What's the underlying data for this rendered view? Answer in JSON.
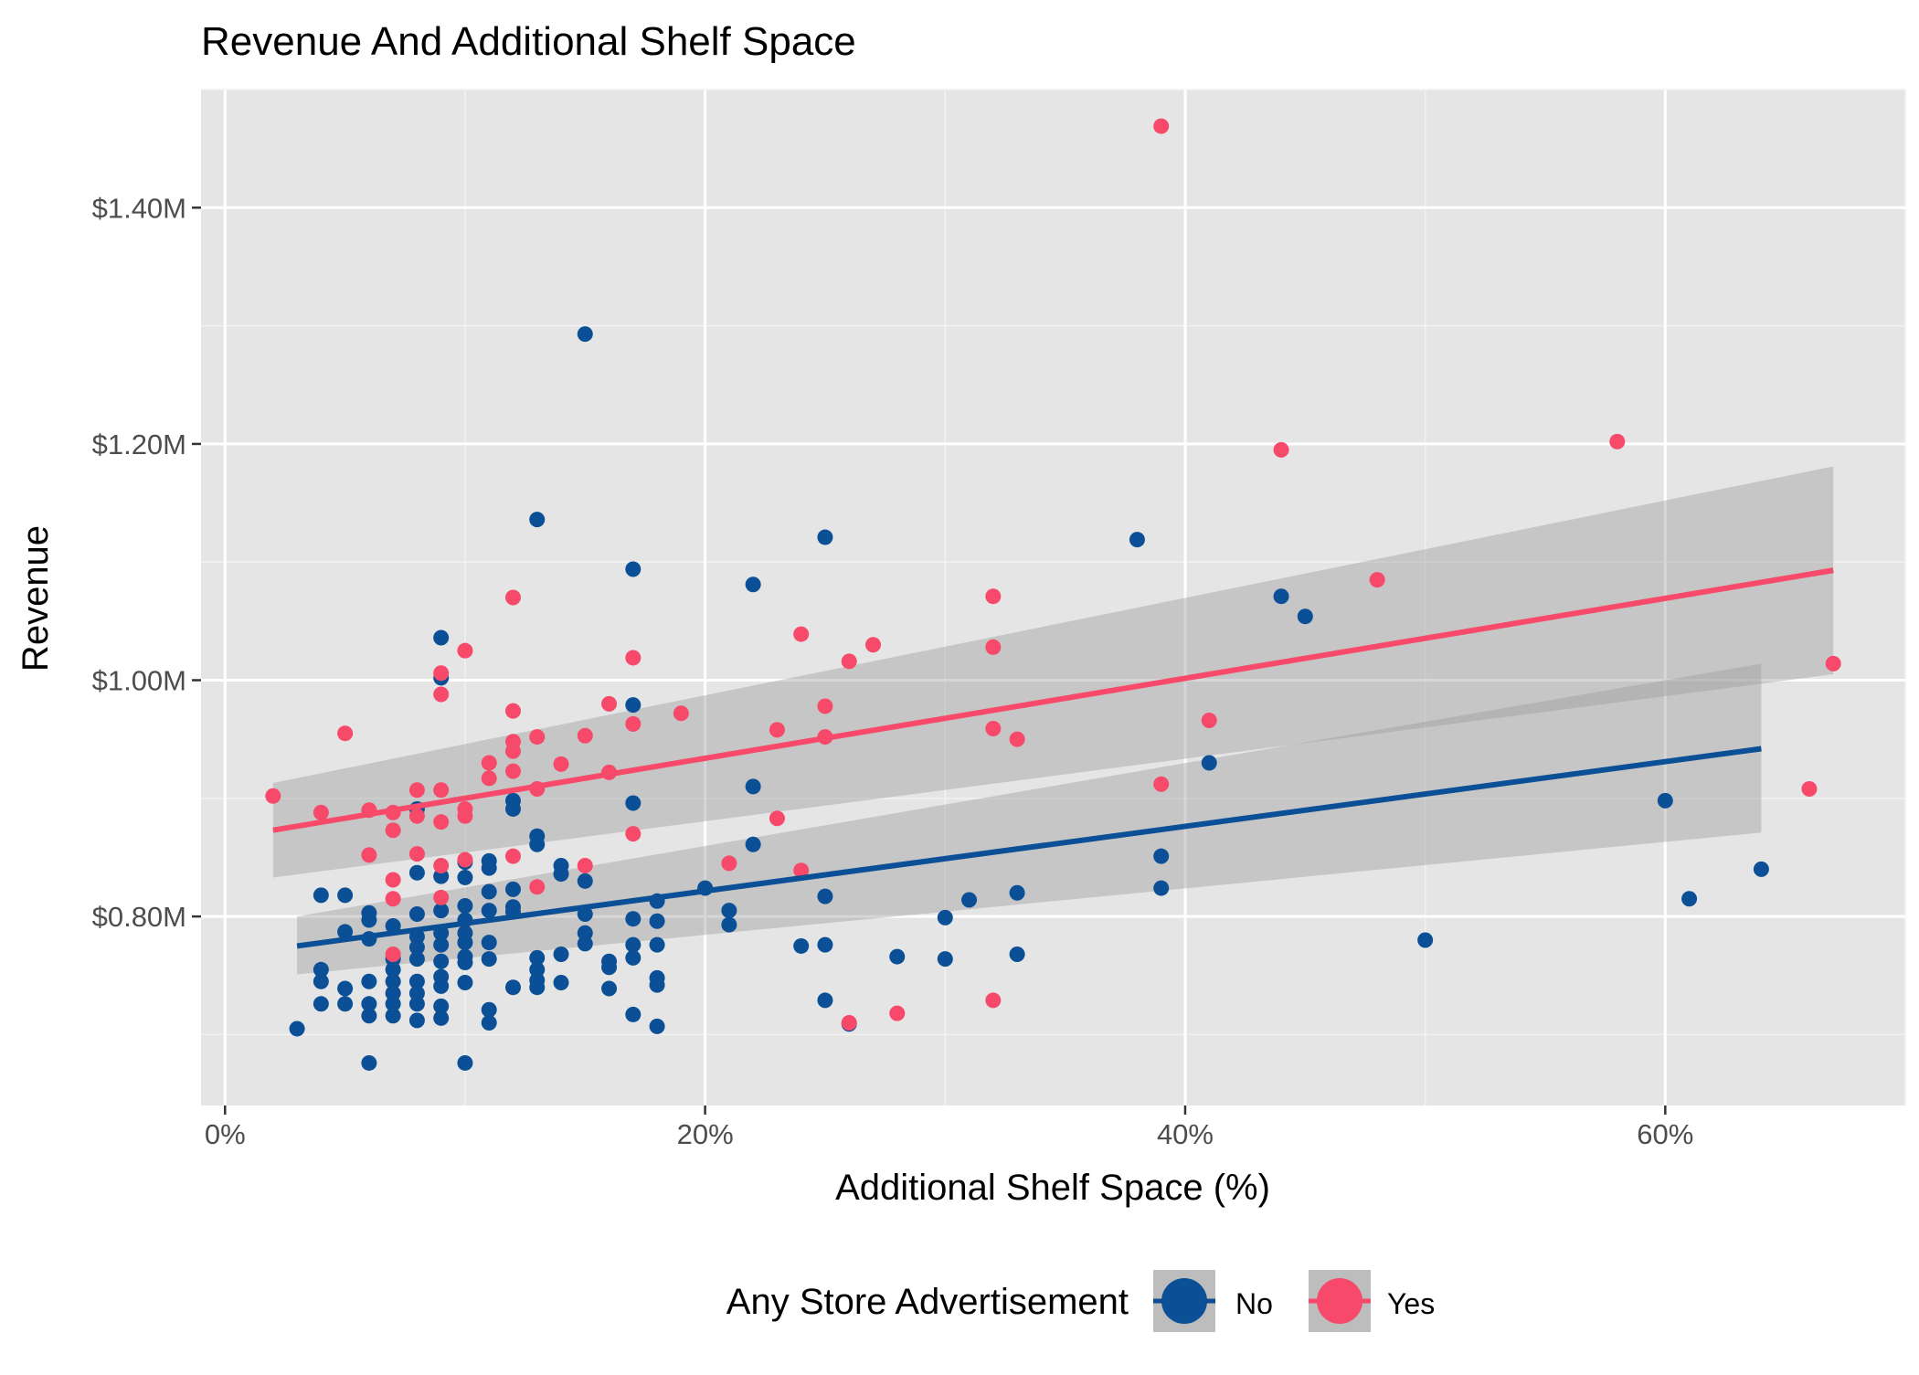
{
  "chart_data": {
    "type": "scatter",
    "title": "Revenue And Additional Shelf Space",
    "xlabel": "Additional Shelf Space (%)",
    "ylabel": "Revenue",
    "xlim": [
      -1,
      70
    ],
    "ylim": [
      0.64,
      1.5
    ],
    "x_ticks": [
      0,
      20,
      40,
      60
    ],
    "x_tick_labels": [
      "0%",
      "20%",
      "40%",
      "60%"
    ],
    "y_ticks": [
      0.8,
      1.0,
      1.2,
      1.4
    ],
    "y_tick_labels": [
      "$0.80M",
      "$1.00M",
      "$1.20M",
      "$1.40M"
    ],
    "grid": true,
    "legend": {
      "title": "Any Store Advertisement",
      "position": "bottom",
      "entries": [
        "No",
        "Yes"
      ]
    },
    "series": [
      {
        "name": "No",
        "color": "#0b4f96",
        "points": [
          [
            3,
            0.705
          ],
          [
            4,
            0.726
          ],
          [
            4,
            0.745
          ],
          [
            4,
            0.755
          ],
          [
            4,
            0.818
          ],
          [
            5,
            0.726
          ],
          [
            5,
            0.739
          ],
          [
            5,
            0.787
          ],
          [
            5,
            0.818
          ],
          [
            6,
            0.676
          ],
          [
            6,
            0.716
          ],
          [
            6,
            0.726
          ],
          [
            6,
            0.745
          ],
          [
            6,
            0.781
          ],
          [
            6,
            0.797
          ],
          [
            6,
            0.803
          ],
          [
            7,
            0.716
          ],
          [
            7,
            0.726
          ],
          [
            7,
            0.735
          ],
          [
            7,
            0.745
          ],
          [
            7,
            0.755
          ],
          [
            7,
            0.764
          ],
          [
            7,
            0.792
          ],
          [
            8,
            0.712
          ],
          [
            8,
            0.726
          ],
          [
            8,
            0.735
          ],
          [
            8,
            0.745
          ],
          [
            8,
            0.764
          ],
          [
            8,
            0.774
          ],
          [
            8,
            0.783
          ],
          [
            8,
            0.802
          ],
          [
            8,
            0.837
          ],
          [
            8,
            0.891
          ],
          [
            9,
            0.714
          ],
          [
            9,
            0.724
          ],
          [
            9,
            0.741
          ],
          [
            9,
            0.749
          ],
          [
            9,
            0.762
          ],
          [
            9,
            0.776
          ],
          [
            9,
            0.786
          ],
          [
            9,
            0.805
          ],
          [
            9,
            0.834
          ],
          [
            9,
            1.002
          ],
          [
            9,
            1.036
          ],
          [
            10,
            0.676
          ],
          [
            10,
            0.744
          ],
          [
            10,
            0.761
          ],
          [
            10,
            0.766
          ],
          [
            10,
            0.778
          ],
          [
            10,
            0.786
          ],
          [
            10,
            0.797
          ],
          [
            10,
            0.809
          ],
          [
            10,
            0.833
          ],
          [
            10,
            0.846
          ],
          [
            11,
            0.71
          ],
          [
            11,
            0.721
          ],
          [
            11,
            0.764
          ],
          [
            11,
            0.778
          ],
          [
            11,
            0.805
          ],
          [
            11,
            0.821
          ],
          [
            11,
            0.841
          ],
          [
            11,
            0.847
          ],
          [
            12,
            0.74
          ],
          [
            12,
            0.804
          ],
          [
            12,
            0.808
          ],
          [
            12,
            0.823
          ],
          [
            12,
            0.891
          ],
          [
            12,
            0.898
          ],
          [
            13,
            0.74
          ],
          [
            13,
            0.746
          ],
          [
            13,
            0.755
          ],
          [
            13,
            0.765
          ],
          [
            13,
            0.861
          ],
          [
            13,
            0.868
          ],
          [
            13,
            1.136
          ],
          [
            14,
            0.744
          ],
          [
            14,
            0.768
          ],
          [
            14,
            0.836
          ],
          [
            14,
            0.843
          ],
          [
            15,
            0.777
          ],
          [
            15,
            0.786
          ],
          [
            15,
            0.802
          ],
          [
            15,
            0.83
          ],
          [
            15,
            1.293
          ],
          [
            16,
            0.739
          ],
          [
            16,
            0.757
          ],
          [
            16,
            0.762
          ],
          [
            17,
            0.717
          ],
          [
            17,
            0.765
          ],
          [
            17,
            0.776
          ],
          [
            17,
            0.798
          ],
          [
            17,
            0.896
          ],
          [
            17,
            0.979
          ],
          [
            17,
            1.094
          ],
          [
            18,
            0.707
          ],
          [
            18,
            0.742
          ],
          [
            18,
            0.748
          ],
          [
            18,
            0.776
          ],
          [
            18,
            0.796
          ],
          [
            18,
            0.813
          ],
          [
            20,
            0.824
          ],
          [
            21,
            0.793
          ],
          [
            21,
            0.805
          ],
          [
            22,
            0.861
          ],
          [
            22,
            0.91
          ],
          [
            22,
            1.081
          ],
          [
            24,
            0.775
          ],
          [
            25,
            0.729
          ],
          [
            25,
            0.776
          ],
          [
            25,
            0.817
          ],
          [
            25,
            1.121
          ],
          [
            26,
            0.709
          ],
          [
            28,
            0.766
          ],
          [
            30,
            0.764
          ],
          [
            30,
            0.799
          ],
          [
            31,
            0.814
          ],
          [
            33,
            0.768
          ],
          [
            33,
            0.82
          ],
          [
            38,
            1.119
          ],
          [
            39,
            0.824
          ],
          [
            39,
            0.851
          ],
          [
            41,
            0.93
          ],
          [
            44,
            1.071
          ],
          [
            45,
            1.054
          ],
          [
            50,
            0.78
          ],
          [
            60,
            0.898
          ],
          [
            61,
            0.815
          ],
          [
            64,
            0.84
          ]
        ],
        "trend": {
          "x": [
            3,
            64
          ],
          "y": [
            0.775,
            0.942
          ]
        },
        "band": {
          "x": [
            3,
            64
          ],
          "upper": [
            0.8,
            1.014
          ],
          "lower": [
            0.751,
            0.871
          ]
        }
      },
      {
        "name": "Yes",
        "color": "#f7496a",
        "points": [
          [
            2,
            0.902
          ],
          [
            4,
            0.888
          ],
          [
            5,
            0.955
          ],
          [
            6,
            0.852
          ],
          [
            6,
            0.89
          ],
          [
            7,
            0.768
          ],
          [
            7,
            0.815
          ],
          [
            7,
            0.831
          ],
          [
            7,
            0.873
          ],
          [
            7,
            0.888
          ],
          [
            8,
            0.853
          ],
          [
            8,
            0.885
          ],
          [
            8,
            0.907
          ],
          [
            9,
            0.816
          ],
          [
            9,
            0.843
          ],
          [
            9,
            0.88
          ],
          [
            9,
            0.907
          ],
          [
            9,
            0.988
          ],
          [
            9,
            1.006
          ],
          [
            10,
            0.848
          ],
          [
            10,
            0.885
          ],
          [
            10,
            0.891
          ],
          [
            10,
            1.025
          ],
          [
            11,
            0.917
          ],
          [
            11,
            0.93
          ],
          [
            12,
            0.851
          ],
          [
            12,
            0.923
          ],
          [
            12,
            0.94
          ],
          [
            12,
            0.948
          ],
          [
            12,
            0.974
          ],
          [
            12,
            1.07
          ],
          [
            13,
            0.825
          ],
          [
            13,
            0.908
          ],
          [
            13,
            0.952
          ],
          [
            14,
            0.929
          ],
          [
            15,
            0.843
          ],
          [
            15,
            0.953
          ],
          [
            16,
            0.922
          ],
          [
            16,
            0.98
          ],
          [
            17,
            0.87
          ],
          [
            17,
            0.963
          ],
          [
            17,
            1.019
          ],
          [
            19,
            0.972
          ],
          [
            21,
            0.845
          ],
          [
            23,
            0.883
          ],
          [
            23,
            0.958
          ],
          [
            24,
            0.839
          ],
          [
            24,
            1.039
          ],
          [
            25,
            0.952
          ],
          [
            25,
            0.978
          ],
          [
            26,
            0.71
          ],
          [
            26,
            1.016
          ],
          [
            27,
            1.03
          ],
          [
            28,
            0.718
          ],
          [
            32,
            0.729
          ],
          [
            32,
            0.959
          ],
          [
            32,
            1.028
          ],
          [
            32,
            1.071
          ],
          [
            33,
            0.95
          ],
          [
            39,
            0.912
          ],
          [
            39,
            1.469
          ],
          [
            41,
            0.966
          ],
          [
            44,
            1.195
          ],
          [
            48,
            1.085
          ],
          [
            58,
            1.202
          ],
          [
            66,
            0.908
          ],
          [
            67,
            1.014
          ]
        ],
        "trend": {
          "x": [
            2,
            67
          ],
          "y": [
            0.873,
            1.093
          ]
        },
        "band": {
          "x": [
            2,
            67
          ],
          "upper": [
            0.913,
            1.181
          ],
          "lower": [
            0.833,
            1.005
          ]
        }
      }
    ]
  }
}
